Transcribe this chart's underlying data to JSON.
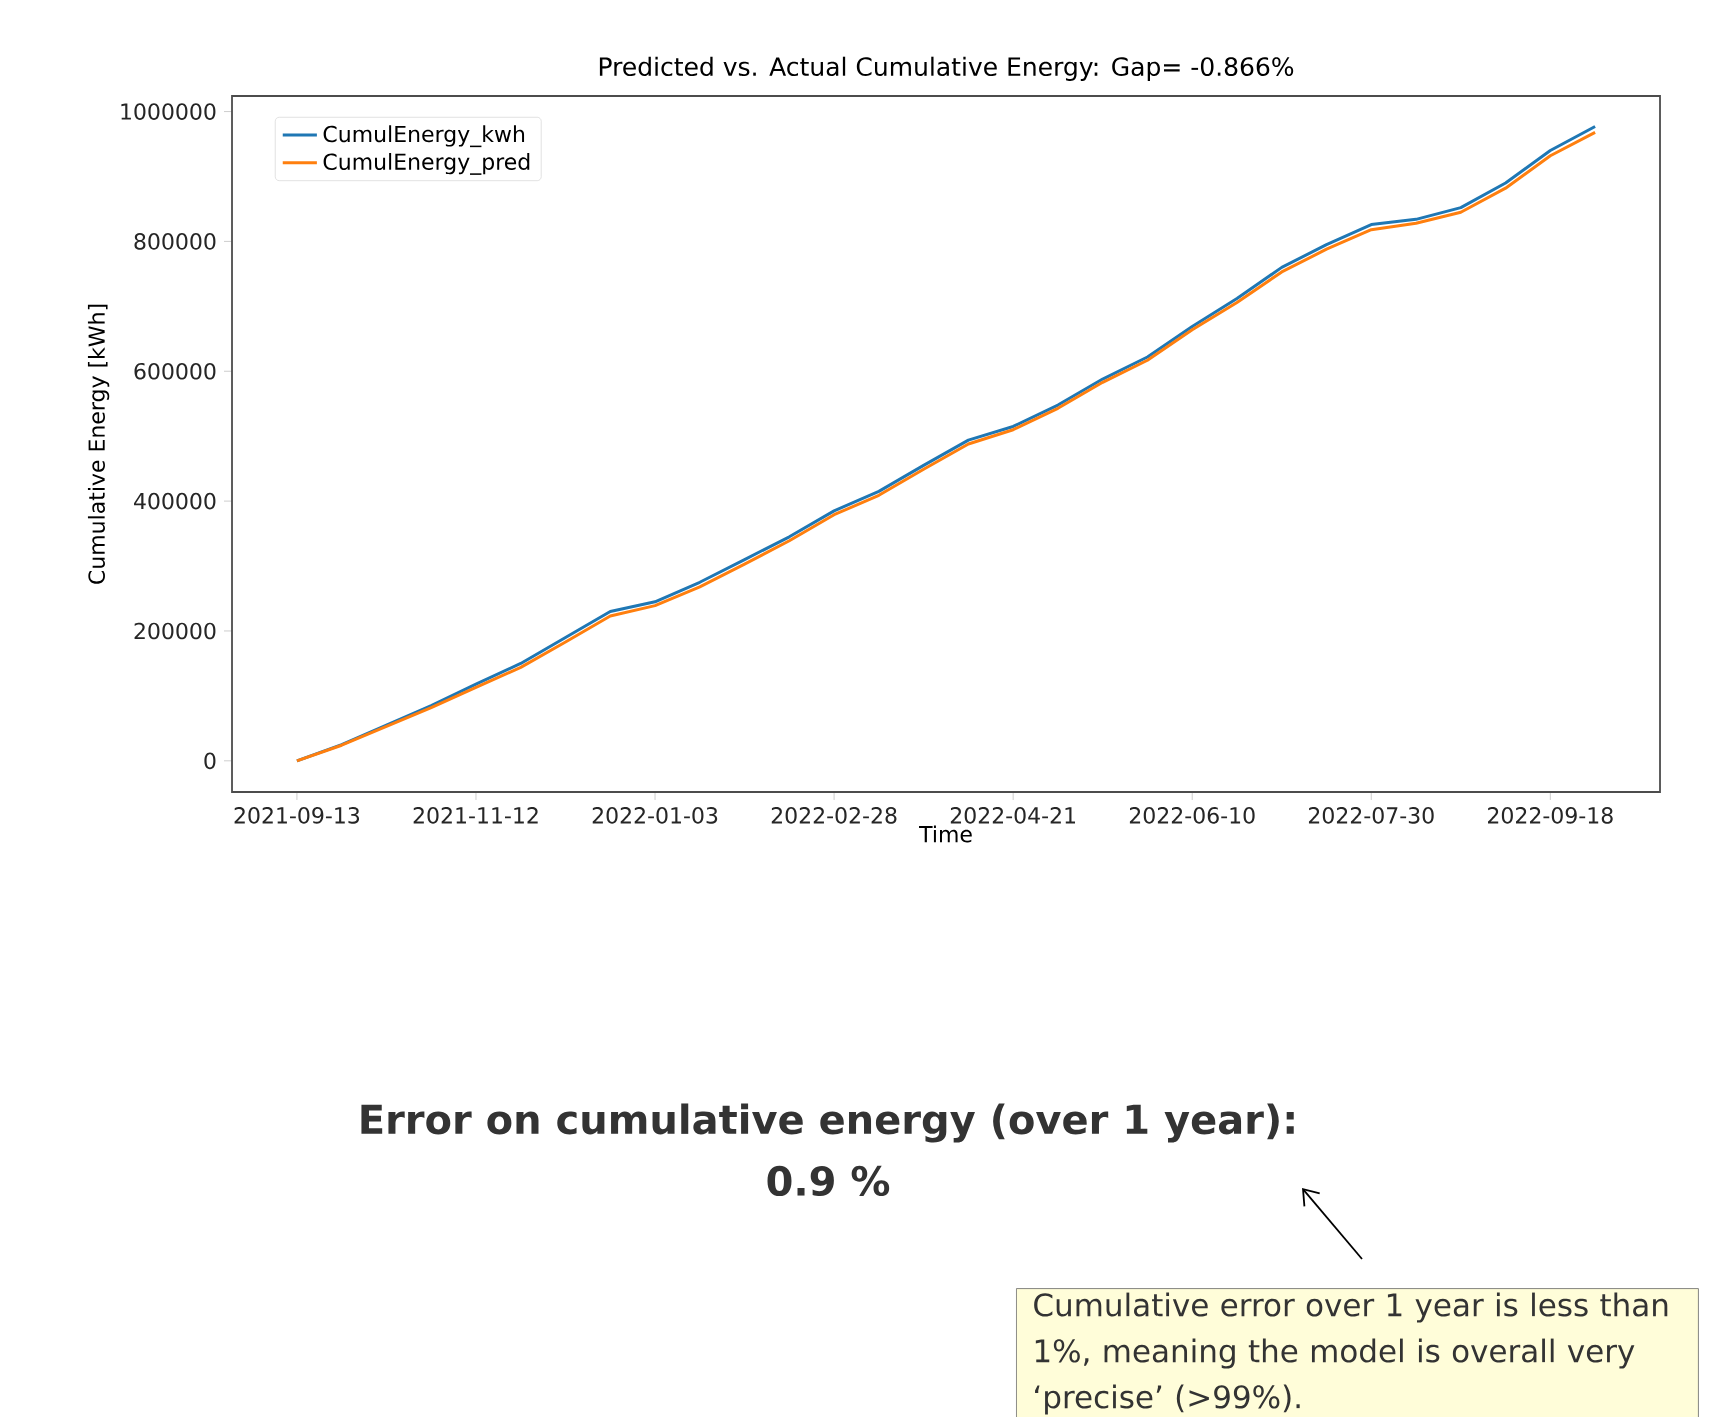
{
  "chart_data": {
    "type": "line",
    "title": "Predicted vs. Actual Cumulative Energy: Gap= -0.866%",
    "xlabel": "Time",
    "ylabel": "Cumulative Energy [kWh]",
    "categories": [
      "2021-09-13",
      null,
      null,
      null,
      "2021-11-12",
      null,
      null,
      null,
      "2022-01-03",
      null,
      null,
      null,
      "2022-02-28",
      null,
      null,
      null,
      "2022-04-21",
      null,
      null,
      null,
      "2022-06-10",
      null,
      null,
      null,
      "2022-07-30",
      null,
      null,
      null,
      "2022-09-18",
      null
    ],
    "series": [
      {
        "name": "CumulEnergy_kwh",
        "color": "#1f77b4",
        "values": [
          0,
          25000,
          55000,
          85000,
          118000,
          150000,
          190000,
          230000,
          245000,
          275000,
          310000,
          345000,
          385000,
          415000,
          455000,
          494000,
          515000,
          548000,
          588000,
          622000,
          669000,
          712000,
          760000,
          795000,
          826000,
          834000,
          852000,
          890000,
          940000,
          977000
        ]
      },
      {
        "name": "CumulEnergy_pred",
        "color": "#ff7f0e",
        "values": [
          0,
          24000,
          53000,
          82000,
          113000,
          144000,
          183000,
          223000,
          239000,
          268000,
          303000,
          339000,
          379000,
          409000,
          449000,
          488000,
          510000,
          543000,
          583000,
          617000,
          664000,
          706000,
          753000,
          788000,
          818000,
          828000,
          845000,
          882000,
          932000,
          968000
        ]
      }
    ],
    "ylim": [
      -48000,
      1024000
    ],
    "yticks": [
      0,
      200000,
      400000,
      600000,
      800000,
      1000000
    ],
    "legend": "top left",
    "annotations": [
      "**Error on cumulative energy (over 1 year):**",
      "**0.9 %**",
      "Cumulative error over 1 year is less than 1%, meaning the model is overall very ‘precise’ (>99%)."
    ]
  }
}
